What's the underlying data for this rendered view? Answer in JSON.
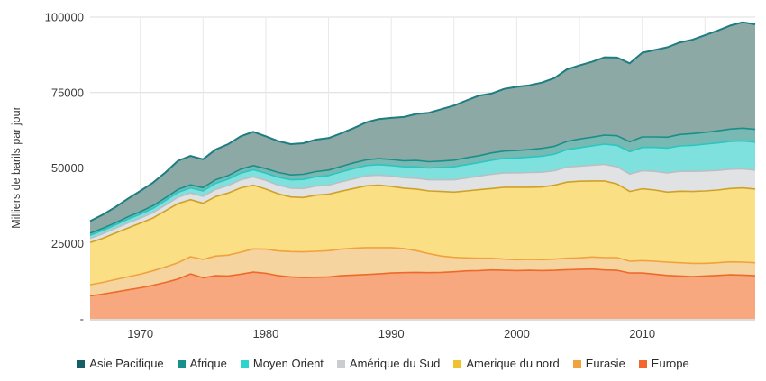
{
  "y_axis_title": "Milliers de barils par jour",
  "chart_data": {
    "type": "area",
    "stacked": true,
    "title": "",
    "xlabel": "",
    "ylabel": "Milliers de barils par jour",
    "unit": "milliers de barils par jour",
    "legend_position": "bottom",
    "grid": true,
    "xlim": [
      1966,
      2019
    ],
    "ylim": [
      0,
      100000
    ],
    "x_ticks": [
      1970,
      1980,
      1990,
      2000,
      2010
    ],
    "x_gridlines": [
      1970,
      1975,
      1980,
      1985,
      1990,
      1995,
      2000,
      2005,
      2010,
      2015
    ],
    "y_ticks": [
      {
        "value": 0,
        "label": "-"
      },
      {
        "value": 25000,
        "label": "25000"
      },
      {
        "value": 50000,
        "label": "50000"
      },
      {
        "value": 75000,
        "label": "75000"
      },
      {
        "value": 100000,
        "label": "100000"
      }
    ],
    "x": [
      1966,
      1967,
      1968,
      1969,
      1970,
      1971,
      1972,
      1973,
      1974,
      1975,
      1976,
      1977,
      1978,
      1979,
      1980,
      1981,
      1982,
      1983,
      1984,
      1985,
      1986,
      1987,
      1988,
      1989,
      1990,
      1991,
      1992,
      1993,
      1994,
      1995,
      1996,
      1997,
      1998,
      1999,
      2000,
      2001,
      2002,
      2003,
      2004,
      2005,
      2006,
      2007,
      2008,
      2009,
      2010,
      2011,
      2012,
      2013,
      2014,
      2015,
      2016,
      2017,
      2018,
      2019
    ],
    "series": [
      {
        "id": "europe",
        "name": "Europe",
        "legend_color": "#f2672c",
        "stroke": "#ee6a2b",
        "fill": "#f8a87e",
        "values": [
          7600,
          8200,
          8900,
          9600,
          10300,
          11100,
          12100,
          13200,
          14900,
          13600,
          14300,
          14200,
          14800,
          15500,
          15100,
          14300,
          13900,
          13700,
          13800,
          13900,
          14300,
          14500,
          14700,
          14900,
          15200,
          15300,
          15400,
          15300,
          15400,
          15600,
          15900,
          16000,
          16200,
          16100,
          16000,
          16100,
          16000,
          16100,
          16300,
          16400,
          16500,
          16200,
          16100,
          15200,
          15200,
          14800,
          14400,
          14200,
          14000,
          14200,
          14400,
          14600,
          14500,
          14300
        ]
      },
      {
        "id": "eurasie",
        "name": "Eurasie",
        "legend_color": "#f0a33c",
        "stroke": "#f0a23c",
        "fill": "#f6d4a0",
        "values": [
          3700,
          3900,
          4100,
          4300,
          4500,
          4800,
          5100,
          5400,
          5700,
          6100,
          6500,
          6900,
          7300,
          7700,
          8000,
          8200,
          8400,
          8500,
          8600,
          8700,
          8800,
          8900,
          8900,
          8700,
          8400,
          8000,
          7200,
          6300,
          5400,
          4800,
          4300,
          4100,
          3900,
          3700,
          3600,
          3600,
          3600,
          3700,
          3800,
          3800,
          4000,
          4100,
          4200,
          3900,
          4100,
          4300,
          4400,
          4400,
          4400,
          4200,
          4200,
          4300,
          4300,
          4300
        ]
      },
      {
        "id": "amerique-du-nord",
        "name": "Amerique du nord",
        "legend_color": "#f1c02f",
        "stroke": "#cfa127",
        "fill": "#fbdf85",
        "values": [
          14000,
          14600,
          15400,
          16200,
          16900,
          17500,
          18600,
          19600,
          18900,
          18600,
          19700,
          20600,
          21300,
          21100,
          19900,
          18900,
          18100,
          18000,
          18600,
          18700,
          19200,
          19800,
          20500,
          20700,
          20300,
          20000,
          20400,
          20800,
          21400,
          21600,
          22200,
          22700,
          23100,
          23800,
          24000,
          23900,
          24100,
          24500,
          25200,
          25400,
          25200,
          25400,
          24400,
          23100,
          23800,
          23600,
          23200,
          23700,
          23800,
          24000,
          24100,
          24300,
          24600,
          24400
        ]
      },
      {
        "id": "amerique-du-sud",
        "name": "Amérique du Sud",
        "legend_color": "#c9cdd0",
        "stroke": "#b9bfc2",
        "fill": "#e0e2e3",
        "values": [
          1400,
          1500,
          1600,
          1700,
          1700,
          1800,
          1900,
          2100,
          2200,
          2300,
          2400,
          2500,
          2700,
          2800,
          2900,
          2900,
          2900,
          3000,
          3000,
          3000,
          3100,
          3200,
          3300,
          3300,
          3400,
          3500,
          3600,
          3700,
          3900,
          4100,
          4300,
          4500,
          4700,
          4800,
          4800,
          4900,
          4900,
          4800,
          5000,
          5000,
          5200,
          5500,
          5700,
          5800,
          6000,
          6200,
          6400,
          6600,
          6700,
          6600,
          6500,
          6400,
          6300,
          6300
        ]
      },
      {
        "id": "moyen-orient",
        "name": "Moyen Orient",
        "legend_color": "#2dd3cc",
        "stroke": "#29c6c2",
        "fill": "#7fe1dd",
        "values": [
          1000,
          1100,
          1100,
          1200,
          1300,
          1400,
          1500,
          1600,
          1700,
          1800,
          2000,
          2100,
          2200,
          2300,
          2400,
          2600,
          2800,
          3000,
          3100,
          3200,
          3300,
          3400,
          3400,
          3500,
          3500,
          3600,
          3800,
          3900,
          4100,
          4300,
          4400,
          4500,
          4700,
          4800,
          4900,
          5100,
          5300,
          5500,
          5800,
          6100,
          6400,
          6700,
          7100,
          7400,
          7700,
          7900,
          8200,
          8400,
          8600,
          8900,
          9100,
          9200,
          9300,
          9300
        ]
      },
      {
        "id": "afrique",
        "name": "Afrique",
        "legend_color": "#17908a",
        "stroke": "#1a8f89",
        "fill": "#79b9b4",
        "values": [
          700,
          700,
          700,
          800,
          800,
          900,
          900,
          1000,
          1000,
          1100,
          1200,
          1200,
          1300,
          1400,
          1500,
          1600,
          1600,
          1700,
          1700,
          1800,
          1800,
          1900,
          1900,
          2000,
          2000,
          2000,
          2100,
          2100,
          2100,
          2200,
          2300,
          2300,
          2400,
          2400,
          2500,
          2500,
          2600,
          2600,
          2700,
          2900,
          2900,
          3000,
          3200,
          3300,
          3500,
          3500,
          3600,
          3800,
          3900,
          3900,
          4000,
          4100,
          4200,
          4200
        ]
      },
      {
        "id": "asie-pacifique",
        "name": "Asie Pacifique",
        "legend_color": "#145f66",
        "stroke": "#1e7d80",
        "fill": "#8ca9a5",
        "values": [
          4000,
          4500,
          5200,
          6000,
          6900,
          7600,
          8400,
          9500,
          9600,
          9400,
          10000,
          10400,
          10900,
          11200,
          10700,
          10400,
          10200,
          10300,
          10600,
          10600,
          11000,
          11500,
          12400,
          13100,
          13800,
          14500,
          15400,
          16200,
          17200,
          18100,
          19000,
          19900,
          19700,
          20600,
          21100,
          21300,
          21800,
          22600,
          23900,
          24400,
          25000,
          25800,
          25900,
          26000,
          27900,
          28800,
          29800,
          30500,
          31100,
          32200,
          33200,
          34300,
          35100,
          34800
        ]
      }
    ],
    "colors": {
      "grid_horizontal": "#dcdcdc",
      "grid_vertical": "#e8e8e8",
      "baseline": "#c8c8c8",
      "tick_text": "#3b3b3b"
    }
  }
}
